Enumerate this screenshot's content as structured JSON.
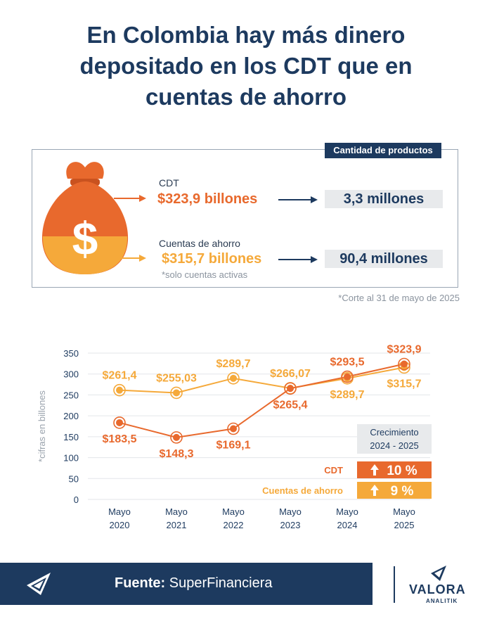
{
  "title": [
    "En Colombia hay más dinero",
    "depositado en los CDT que en",
    "cuentas de ahorro"
  ],
  "colors": {
    "cdt": "#e8692d",
    "ahorro": "#f5a93a",
    "navy": "#1d3a5f"
  },
  "summary": {
    "header": "Cantidad de productos",
    "cdt_label": "CDT",
    "cdt_amount": "$323,9 billones",
    "cdt_products": "3,3 millones",
    "ahorro_label": "Cuentas de ahorro",
    "ahorro_amount": "$315,7 billones",
    "ahorro_note": "*solo cuentas activas",
    "ahorro_products": "90,4 millones",
    "corte": "*Corte al 31 de mayo de 2025"
  },
  "growth": {
    "title_line1": "Crecimiento",
    "title_line2": "2024 - 2025",
    "cdt_label": "CDT",
    "cdt_value": "10 %",
    "ahorro_label": "Cuentas de ahorro",
    "ahorro_value": "9 %"
  },
  "footer": {
    "source_label": "Fuente:",
    "source_name": "SuperFinanciera",
    "brand": "VALORA",
    "brand_sub": "ANALITIK"
  },
  "chart_data": {
    "type": "line",
    "ylabel": "*cifras en billones",
    "ylim": [
      0,
      350
    ],
    "yticks": [
      0,
      50,
      100,
      150,
      200,
      250,
      300,
      350
    ],
    "categories": [
      "Mayo 2020",
      "Mayo 2021",
      "Mayo 2022",
      "Mayo 2023",
      "Mayo 2024",
      "Mayo 2025"
    ],
    "category_lines": [
      [
        "Mayo",
        "2020"
      ],
      [
        "Mayo",
        "2021"
      ],
      [
        "Mayo",
        "2022"
      ],
      [
        "Mayo",
        "2023"
      ],
      [
        "Mayo",
        "2024"
      ],
      [
        "Mayo",
        "2025"
      ]
    ],
    "grid": true,
    "series": [
      {
        "name": "Cuentas de ahorro",
        "color": "#f5a93a",
        "values": [
          261.4,
          255.03,
          289.7,
          266.07,
          289.7,
          315.7
        ],
        "labels": [
          "$261,4",
          "$255,03",
          "$289,7",
          "$266,07",
          "$289,7",
          "$315,7"
        ],
        "label_side": [
          "above",
          "above",
          "above",
          "above",
          "below",
          "below"
        ]
      },
      {
        "name": "CDT",
        "color": "#e8692d",
        "values": [
          183.5,
          148.3,
          169.1,
          265.4,
          293.5,
          323.9
        ],
        "labels": [
          "$183,5",
          "$148,3",
          "$169,1",
          "$265,4",
          "$293,5",
          "$323,9"
        ],
        "label_side": [
          "below",
          "below",
          "below",
          "below",
          "above",
          "above"
        ]
      }
    ]
  }
}
